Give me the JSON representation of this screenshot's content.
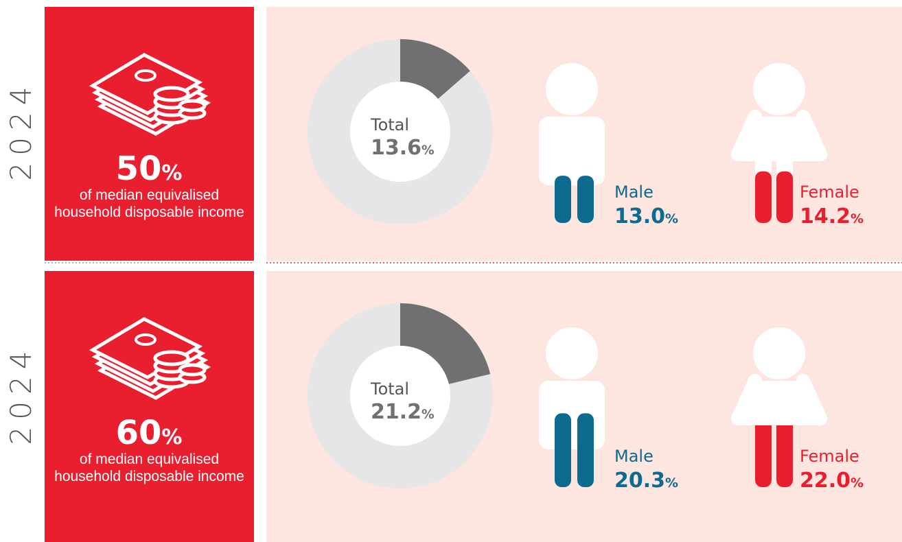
{
  "unit": "%",
  "rows": [
    {
      "year": "2024",
      "threshold": 50,
      "description": "of median equivalised household disposable income",
      "total": {
        "label": "Total",
        "value": 13.6
      },
      "male": {
        "label": "Male",
        "value": 13.0,
        "value_label": "13.0"
      },
      "female": {
        "label": "Female",
        "value": 14.2
      }
    },
    {
      "year": "2024",
      "threshold": 60,
      "description": "of median equivalised household disposable income",
      "total": {
        "label": "Total",
        "value": 21.2
      },
      "male": {
        "label": "Male",
        "value": 20.3
      },
      "female": {
        "label": "Female",
        "value": 22.0,
        "value_label": "22.0"
      }
    }
  ]
}
